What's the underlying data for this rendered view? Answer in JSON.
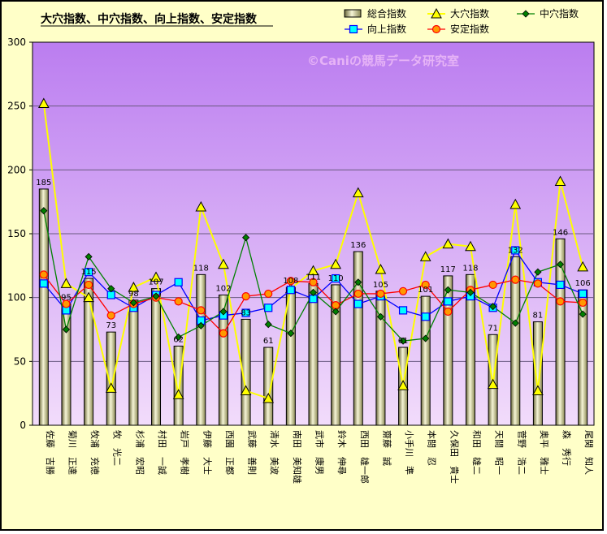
{
  "chart_data": {
    "type": "bar",
    "title": "大穴指数、中穴指数、向上指数、安定指数",
    "watermark": "©Caniの競馬データ研究室",
    "ylim": [
      0,
      300
    ],
    "yticks": [
      0,
      50,
      100,
      150,
      200,
      250,
      300
    ],
    "categories": [
      "佐藤　吉勝",
      "菊川　正達",
      "牧浦　充徳",
      "牧　光二",
      "杉浦　宏昭",
      "村田　一誠",
      "岩戸　孝樹",
      "伊藤　大士",
      "西園　正都",
      "武藤　善則",
      "清水　美波",
      "南田　美知雄",
      "武市　康男",
      "鈴木　伸尋",
      "西田　雄一郎",
      "齋藤　誠",
      "小手川　準",
      "本間　忍",
      "久保田　貴士",
      "和田　雄二",
      "天間　昭一",
      "菅野　浩二",
      "奥平　雅士",
      "森　秀行",
      "尾関　知人"
    ],
    "series": [
      {
        "name": "総合指数",
        "kind": "bar",
        "color": "#ecebc0",
        "values": [
          185,
          95,
          115,
          73,
          98,
          107,
          62,
          118,
          102,
          83,
          61,
          108,
          111,
          110,
          136,
          105,
          61,
          101,
          117,
          118,
          71,
          132,
          81,
          146,
          106
        ]
      },
      {
        "name": "大穴指数",
        "kind": "line",
        "marker": "triangle",
        "color": "#ffff00",
        "values": [
          252,
          111,
          100,
          29,
          108,
          116,
          24,
          171,
          126,
          27,
          21,
          107,
          121,
          126,
          182,
          122,
          31,
          132,
          142,
          140,
          32,
          173,
          27,
          191,
          124
        ]
      },
      {
        "name": "中穴指数",
        "kind": "line",
        "marker": "diamond",
        "color": "#008000",
        "values": [
          168,
          75,
          132,
          107,
          96,
          101,
          69,
          78,
          89,
          147,
          79,
          72,
          104,
          89,
          112,
          85,
          66,
          68,
          106,
          104,
          93,
          80,
          120,
          126,
          87
        ]
      },
      {
        "name": "向上指数",
        "kind": "line",
        "marker": "square",
        "color": "#0000ff",
        "values": [
          111,
          90,
          120,
          102,
          92,
          102,
          112,
          82,
          86,
          88,
          92,
          106,
          99,
          115,
          95,
          101,
          90,
          85,
          97,
          101,
          92,
          137,
          112,
          110,
          103
        ]
      },
      {
        "name": "安定指数",
        "kind": "line",
        "marker": "circle",
        "color": "#ff0000",
        "values": [
          118,
          95,
          110,
          86,
          95,
          100,
          97,
          90,
          72,
          101,
          103,
          113,
          112,
          94,
          103,
          103,
          105,
          110,
          89,
          106,
          110,
          114,
          111,
          97,
          96
        ]
      }
    ],
    "legend": {
      "position": "top-right"
    },
    "grid": true
  }
}
